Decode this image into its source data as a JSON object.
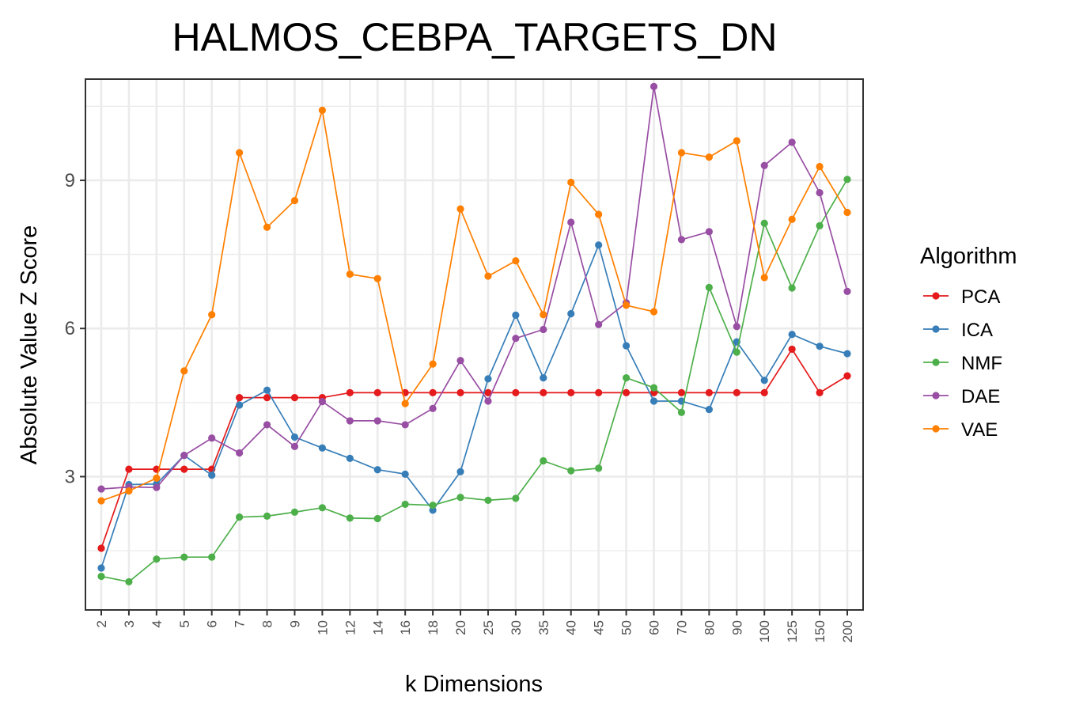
{
  "chart_data": {
    "type": "line",
    "title": "HALMOS_CEBPA_TARGETS_DN",
    "xlabel": "k Dimensions",
    "ylabel": "Absolute Value Z Score",
    "categories": [
      "2",
      "3",
      "4",
      "5",
      "6",
      "7",
      "8",
      "9",
      "10",
      "12",
      "14",
      "16",
      "18",
      "20",
      "25",
      "30",
      "35",
      "40",
      "45",
      "50",
      "60",
      "70",
      "80",
      "90",
      "100",
      "125",
      "150",
      "200"
    ],
    "yticks": [
      3,
      6,
      9
    ],
    "ylim": [
      0.3,
      11.05
    ],
    "grid": true,
    "legend": {
      "title": "Algorithm",
      "placement": "right"
    },
    "series": [
      {
        "name": "PCA",
        "color": "#E41A1C",
        "values": [
          1.55,
          3.15,
          3.15,
          3.15,
          3.15,
          4.6,
          4.6,
          4.6,
          4.6,
          4.7,
          4.7,
          4.7,
          4.7,
          4.7,
          4.7,
          4.7,
          4.7,
          4.7,
          4.7,
          4.7,
          4.7,
          4.7,
          4.7,
          4.7,
          4.7,
          5.58,
          4.7,
          5.04
        ]
      },
      {
        "name": "ICA",
        "color": "#377EB8",
        "values": [
          1.15,
          2.84,
          2.85,
          3.43,
          3.03,
          4.45,
          4.75,
          3.8,
          3.58,
          3.37,
          3.14,
          3.05,
          2.32,
          3.1,
          4.98,
          6.27,
          5.0,
          6.3,
          7.69,
          5.65,
          4.53,
          4.53,
          4.36,
          5.73,
          4.95,
          5.88,
          5.64,
          5.49
        ]
      },
      {
        "name": "NMF",
        "color": "#4DAF4A",
        "values": [
          0.98,
          0.87,
          1.33,
          1.37,
          1.37,
          2.18,
          2.2,
          2.28,
          2.37,
          2.16,
          2.15,
          2.44,
          2.42,
          2.58,
          2.52,
          2.56,
          3.32,
          3.12,
          3.17,
          5.0,
          4.8,
          4.3,
          6.83,
          5.52,
          8.13,
          6.82,
          8.08,
          9.02
        ]
      },
      {
        "name": "DAE",
        "color": "#984EA3",
        "values": [
          2.75,
          2.79,
          2.78,
          3.43,
          3.78,
          3.48,
          4.05,
          3.61,
          4.52,
          4.13,
          4.13,
          4.05,
          4.38,
          5.35,
          4.53,
          5.8,
          5.98,
          8.15,
          6.08,
          6.52,
          10.9,
          7.8,
          7.96,
          6.04,
          9.3,
          9.77,
          8.75,
          6.75
        ]
      },
      {
        "name": "VAE",
        "color": "#FF7F00",
        "values": [
          2.51,
          2.71,
          2.97,
          5.14,
          6.28,
          9.56,
          8.05,
          8.59,
          10.42,
          7.1,
          7.01,
          4.48,
          5.28,
          8.42,
          7.06,
          7.37,
          6.28,
          8.96,
          8.31,
          6.47,
          6.34,
          9.56,
          9.47,
          9.8,
          7.03,
          8.21,
          9.28,
          8.35
        ]
      }
    ]
  }
}
